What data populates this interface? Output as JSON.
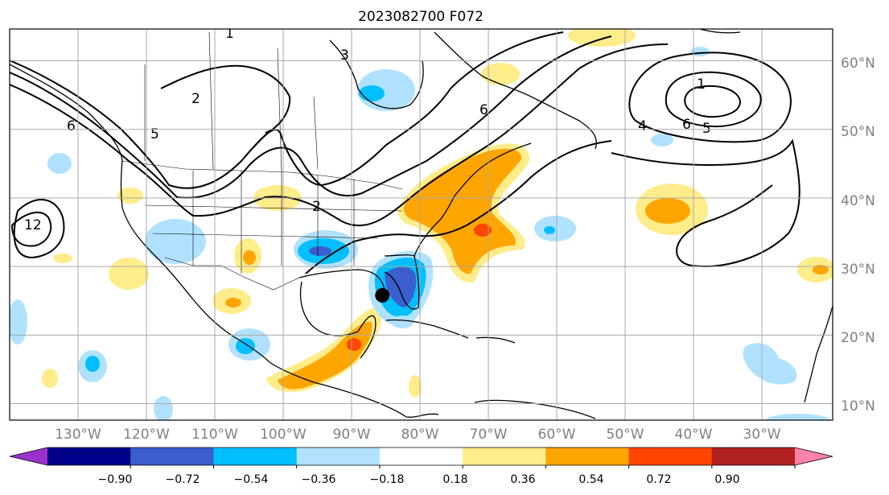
{
  "title": "2023082700 F072",
  "lat_labels": [
    "60°N",
    "50°N",
    "40°N",
    "30°N",
    "20°N",
    "10°N"
  ],
  "lon_labels": [
    "130°W",
    "120°W",
    "110°W",
    "100°W",
    "90°W",
    "80°W",
    "70°W",
    "60°W",
    "50°W",
    "40°W",
    "30°W"
  ],
  "colorbar": {
    "ticks": [
      "−0.90",
      "−0.72",
      "−0.54",
      "−0.36",
      "−0.18",
      "0.18",
      "0.36",
      "0.54",
      "0.72",
      "0.90"
    ],
    "colors": [
      "#9a32cd",
      "#00008b",
      "#3a5fcd",
      "#00bfff",
      "#b0e2ff",
      "#ffffff",
      "#ffec8b",
      "#ffa500",
      "#ff4500",
      "#b22222",
      "#ff82ab"
    ]
  },
  "contour_labels": [
    "1",
    "3",
    "2",
    "6",
    "6",
    "5",
    "4",
    "6",
    "5",
    "2",
    "1",
    "12"
  ],
  "colors": {
    "pos_light": "#ffec8b",
    "pos_mid": "#ffa500",
    "pos_strong": "#ff4500",
    "neg_light": "#b0e2ff",
    "neg_mid": "#00bfff",
    "neg_strong": "#3a5fcd",
    "grid": "#a9a9a9",
    "contour": "#000000"
  },
  "marker": {
    "name": "storm-center-marker",
    "lon": -85.5,
    "lat": 25.8
  }
}
